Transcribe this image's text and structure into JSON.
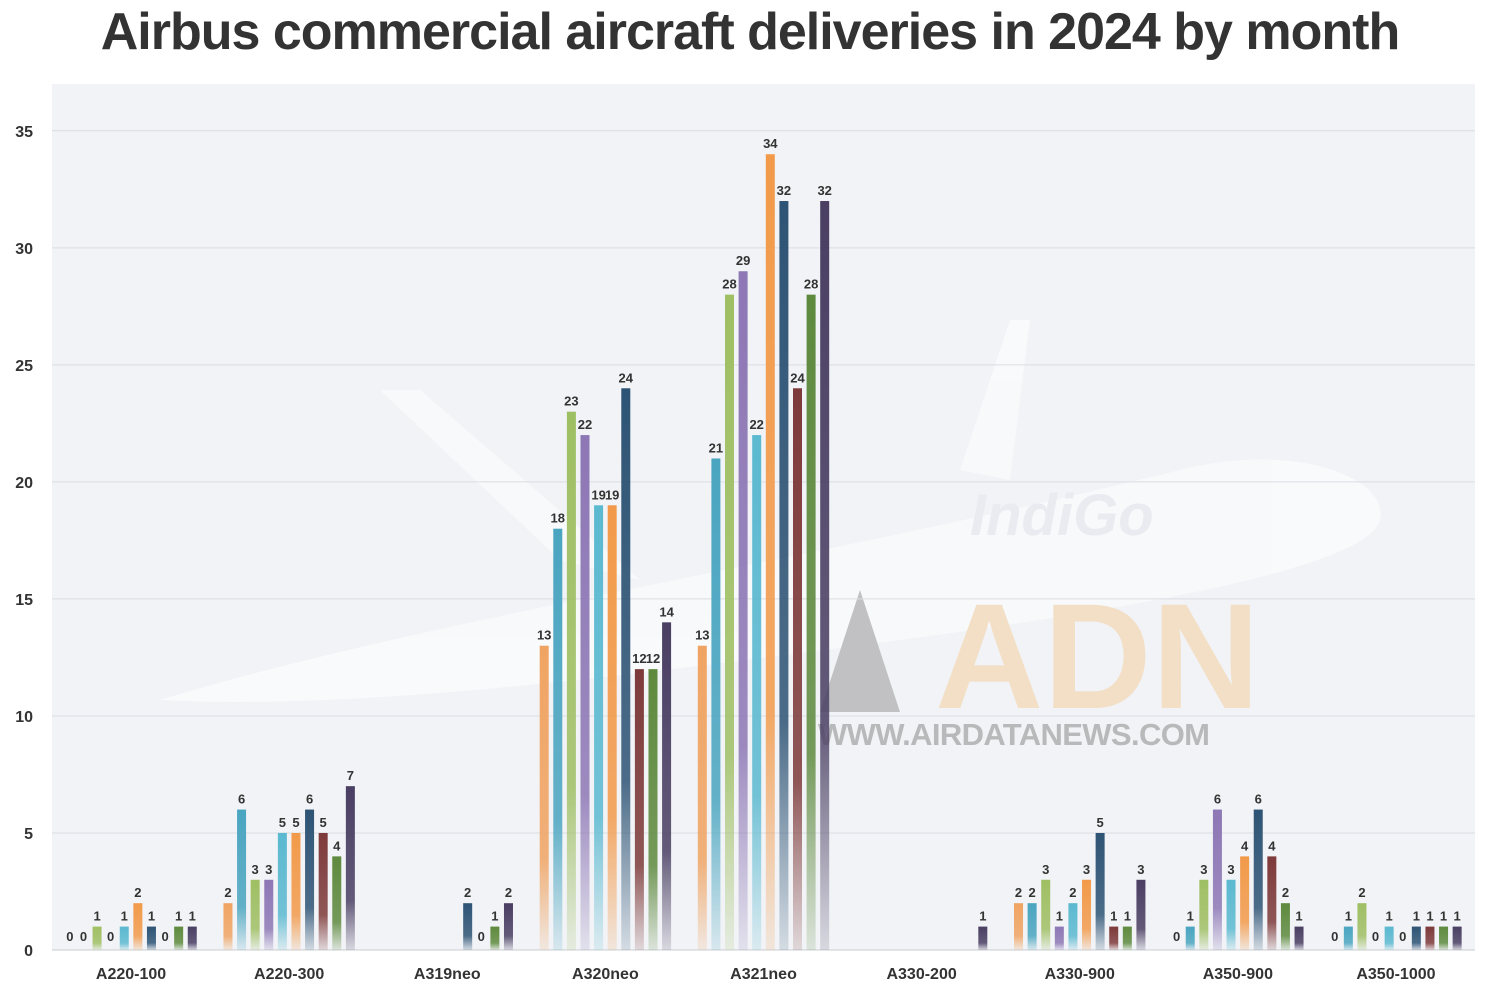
{
  "title": "Airbus commercial aircraft deliveries in 2024 by month",
  "watermark": {
    "logo_text": "ADN",
    "url_text": "WWW.AIRDATANEWS.COM",
    "livery_text": "IndiGo",
    "logo_color": "#f5cfa0",
    "url_color": "#8a8a8a"
  },
  "colors": {
    "series": [
      "#f0a463",
      "#4aa5c0",
      "#9fbf63",
      "#8d77b5",
      "#5bb9d0",
      "#f29a4a",
      "#2e5475",
      "#7e3a3a",
      "#5e8a3e",
      "#4a3f63"
    ],
    "plot_background": "#f1f3f6",
    "gridline": "#d9dde2"
  },
  "chart_data": {
    "type": "bar",
    "title": "Airbus commercial aircraft deliveries in 2024 by month",
    "xlabel": "",
    "ylabel": "",
    "ylim": [
      0,
      37
    ],
    "yticks": [
      0,
      5,
      10,
      15,
      20,
      25,
      30,
      35
    ],
    "grid": true,
    "legend": "none",
    "categories": [
      "A220-100",
      "A220-300",
      "A319neo",
      "A320neo",
      "A321neo",
      "A330-200",
      "A330-900",
      "A350-900",
      "A350-1000"
    ],
    "series": [
      {
        "values": [
          0,
          2,
          null,
          13,
          13,
          null,
          2,
          0,
          0
        ]
      },
      {
        "values": [
          0,
          6,
          null,
          18,
          21,
          null,
          2,
          1,
          1
        ]
      },
      {
        "values": [
          1,
          3,
          null,
          23,
          28,
          null,
          3,
          3,
          2
        ]
      },
      {
        "values": [
          0,
          3,
          null,
          22,
          29,
          null,
          1,
          6,
          0
        ]
      },
      {
        "values": [
          1,
          5,
          null,
          19,
          22,
          null,
          2,
          3,
          1
        ]
      },
      {
        "values": [
          2,
          5,
          null,
          19,
          34,
          null,
          3,
          4,
          0
        ]
      },
      {
        "values": [
          1,
          6,
          2,
          24,
          32,
          null,
          5,
          6,
          1
        ]
      },
      {
        "values": [
          0,
          5,
          0,
          12,
          24,
          null,
          1,
          4,
          1
        ]
      },
      {
        "values": [
          1,
          4,
          1,
          12,
          28,
          null,
          1,
          2,
          1
        ]
      },
      {
        "values": [
          1,
          7,
          2,
          14,
          32,
          1,
          3,
          1,
          1
        ]
      }
    ]
  }
}
